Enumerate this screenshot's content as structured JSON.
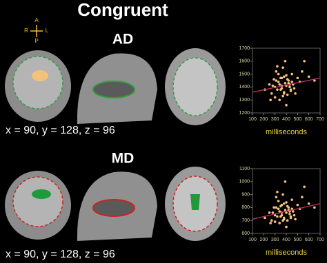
{
  "header": {
    "title": "Congruent"
  },
  "orientation": {
    "top": "A",
    "left": "R",
    "right": "L",
    "bottom": "P"
  },
  "panels": [
    {
      "label": "AD",
      "coords": "x = 90, y = 128, z = 96"
    },
    {
      "label": "MD",
      "coords": "x = 90, y = 128, z = 96"
    }
  ],
  "chart_data": [
    {
      "type": "scatter",
      "xlabel": "milliseconds",
      "color": "#f7c17f",
      "xlim": [
        100,
        700
      ],
      "xticks": [
        100,
        200,
        300,
        400,
        500,
        600,
        700
      ],
      "ylim": [
        1200,
        1700
      ],
      "yticks": [
        1200,
        1300,
        1400,
        1500,
        1600,
        1700
      ],
      "x": [
        210,
        250,
        270,
        290,
        300,
        310,
        320,
        330,
        340,
        350,
        360,
        370,
        380,
        390,
        400,
        410,
        420,
        430,
        440,
        450,
        460,
        480,
        500,
        520,
        540,
        560,
        600,
        650,
        300,
        320,
        340,
        360,
        380,
        400,
        420,
        440,
        280,
        330,
        370,
        410,
        450,
        350,
        390,
        430,
        260,
        310,
        470,
        360,
        400,
        380
      ],
      "y": [
        1380,
        1420,
        1350,
        1460,
        1400,
        1520,
        1380,
        1440,
        1300,
        1470,
        1410,
        1550,
        1360,
        1430,
        1490,
        1340,
        1450,
        1400,
        1380,
        1500,
        1420,
        1350,
        1470,
        1440,
        1520,
        1600,
        1480,
        1450,
        1320,
        1560,
        1420,
        1390,
        1480,
        1260,
        1430,
        1370,
        1410,
        1500,
        1330,
        1460,
        1440,
        1380,
        1600,
        1420,
        1300,
        1450,
        1390,
        1470,
        1410,
        1350
      ],
      "fit_line": {
        "color": "#c8306e",
        "x": [
          100,
          700
        ],
        "y": [
          1360,
          1470
        ]
      }
    },
    {
      "type": "scatter",
      "xlabel": "milliseconds",
      "color": "#f7c17f",
      "xlim": [
        100,
        700
      ],
      "xticks": [
        100,
        200,
        300,
        400,
        500,
        600,
        700
      ],
      "ylim": [
        600,
        1100
      ],
      "yticks": [
        600,
        700,
        800,
        900,
        1000,
        1100
      ],
      "x": [
        210,
        250,
        270,
        290,
        300,
        310,
        320,
        330,
        340,
        350,
        360,
        370,
        380,
        390,
        400,
        410,
        420,
        430,
        440,
        450,
        460,
        480,
        500,
        520,
        540,
        560,
        600,
        650,
        300,
        320,
        340,
        360,
        380,
        400,
        420,
        440,
        280,
        330,
        370,
        410,
        450,
        350,
        390,
        430,
        260,
        310,
        470,
        360,
        400,
        380
      ],
      "y": [
        720,
        760,
        700,
        800,
        740,
        880,
        730,
        790,
        680,
        810,
        760,
        900,
        720,
        780,
        840,
        700,
        800,
        750,
        730,
        860,
        770,
        710,
        820,
        790,
        880,
        960,
        830,
        800,
        690,
        920,
        770,
        740,
        830,
        650,
        780,
        720,
        760,
        850,
        700,
        810,
        790,
        730,
        1000,
        770,
        680,
        800,
        740,
        820,
        760,
        710
      ],
      "fit_line": {
        "color": "#c8306e",
        "x": [
          100,
          700
        ],
        "y": [
          710,
          830
        ]
      }
    }
  ]
}
